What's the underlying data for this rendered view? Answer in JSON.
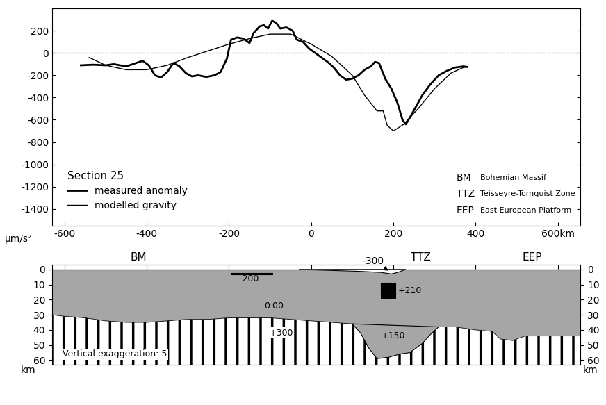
{
  "chart_data": {
    "type": "line",
    "ylabel": "µm/s²",
    "legend_title": "Section 25",
    "legend": "lower left",
    "baseline": 0,
    "xlim": [
      -630,
      655
    ],
    "ylim": [
      -1550,
      400
    ],
    "xticks": [
      -600,
      -400,
      -200,
      0,
      200,
      400,
      {
        "value": 600,
        "label": "600km"
      }
    ],
    "yticks": [
      -1400,
      -1200,
      -1000,
      -800,
      -600,
      -400,
      -200,
      0,
      200
    ],
    "abbreviations": [
      {
        "abbr": "BM",
        "name": "Bohemian Massif"
      },
      {
        "abbr": "TTZ",
        "name": "Teisseyre-Tornquist Zone"
      },
      {
        "abbr": "EEP",
        "name": "East European Platform"
      }
    ],
    "series": [
      {
        "name": "measured anomaly",
        "color": "#000000",
        "line_style": "solid",
        "x": [
          -560,
          -530,
          -500,
          -480,
          -450,
          -430,
          -410,
          -395,
          -380,
          -365,
          -350,
          -335,
          -320,
          -305,
          -290,
          -275,
          -255,
          -235,
          -220,
          -205,
          -195,
          -180,
          -165,
          -150,
          -140,
          -125,
          -115,
          -105,
          -95,
          -85,
          -75,
          -60,
          -45,
          -35,
          -20,
          -5,
          10,
          25,
          40,
          55,
          70,
          85,
          100,
          115,
          130,
          145,
          155,
          165,
          180,
          195,
          210,
          222,
          230,
          240,
          255,
          270,
          290,
          310,
          330,
          350,
          370,
          380
        ],
        "values": [
          -110,
          -105,
          -110,
          -100,
          -120,
          -95,
          -70,
          -110,
          -200,
          -220,
          -170,
          -90,
          -120,
          -180,
          -210,
          -200,
          -215,
          -200,
          -170,
          -50,
          120,
          140,
          130,
          90,
          180,
          240,
          250,
          220,
          290,
          270,
          220,
          230,
          200,
          120,
          100,
          40,
          0,
          -40,
          -80,
          -130,
          -200,
          -240,
          -230,
          -200,
          -150,
          -120,
          -80,
          -90,
          -230,
          -320,
          -450,
          -600,
          -640,
          -580,
          -480,
          -380,
          -280,
          -200,
          -160,
          -130,
          -120,
          -125
        ]
      },
      {
        "name": "modelled gravity",
        "color": "#000000",
        "line_style": "solid",
        "x": [
          -540,
          -500,
          -450,
          -400,
          -350,
          -300,
          -250,
          -200,
          -150,
          -100,
          -50,
          0,
          50,
          100,
          130,
          160,
          175,
          185,
          200,
          225,
          260,
          300,
          340,
          370,
          380
        ],
        "values": [
          -40,
          -110,
          -150,
          -150,
          -110,
          -40,
          20,
          80,
          130,
          170,
          170,
          80,
          -30,
          -200,
          -380,
          -520,
          -520,
          -650,
          -700,
          -640,
          -500,
          -320,
          -180,
          -130,
          -125
        ]
      }
    ]
  },
  "section": {
    "ylabel": "km",
    "ylim": [
      63,
      -3
    ],
    "yticks": [
      0,
      10,
      20,
      30,
      40,
      50,
      60
    ],
    "surface": 0,
    "note": "Vertical exaggeration: 5",
    "regions": [
      {
        "label": "BM",
        "x": -420
      },
      {
        "label": "TTZ",
        "x": 266
      },
      {
        "label": "EEP",
        "x": 537
      }
    ],
    "moho": {
      "x": [
        -630,
        -600,
        -550,
        -500,
        -450,
        -400,
        -350,
        -300,
        -250,
        -200,
        -150,
        -100,
        -50,
        0,
        50,
        100,
        150,
        200,
        250,
        300,
        350,
        400,
        440,
        460,
        490,
        520,
        560,
        655
      ],
      "depth": [
        30,
        31,
        32,
        34,
        35,
        35,
        34,
        33,
        33,
        32,
        32,
        32,
        33,
        34,
        35,
        36,
        37,
        37,
        38,
        38,
        38,
        40,
        41,
        46,
        47,
        44,
        44,
        44
      ]
    },
    "crust_label": {
      "label": "0.00",
      "x": -90,
      "depth": 24
    },
    "mantle_label": {
      "label": "+300",
      "x": -73,
      "depth": 42
    },
    "bodies": [
      {
        "label": "-300",
        "kind": "basin",
        "x": [
          -30,
          50,
          120,
          170,
          195,
          210,
          230
        ],
        "depth": [
          0,
          0.7,
          1.3,
          2,
          3,
          2,
          0
        ],
        "label_x": 150,
        "label_depth": -5.5,
        "arrow_x": 192,
        "arrow_depth": 1.5
      },
      {
        "label": "-200",
        "kind": "lens",
        "x": [
          -195,
          -95,
          -95,
          -195
        ],
        "depth": [
          2.3,
          2.3,
          3.2,
          3.2
        ],
        "label_x": -150,
        "label_depth": 6.5
      },
      {
        "label": "+210",
        "kind": "block",
        "x": [
          170,
          205,
          205,
          170
        ],
        "depth": [
          9,
          9,
          19,
          19
        ],
        "label_x": 240,
        "label_depth": 14
      },
      {
        "label": "+150",
        "kind": "root",
        "x": [
          100,
          310,
          290,
          270,
          240,
          215,
          190,
          160,
          140,
          120
        ],
        "depth": [
          36,
          38,
          43,
          49,
          55,
          56,
          58,
          59,
          52,
          42
        ],
        "label_x": 200,
        "label_depth": 44
      }
    ]
  }
}
